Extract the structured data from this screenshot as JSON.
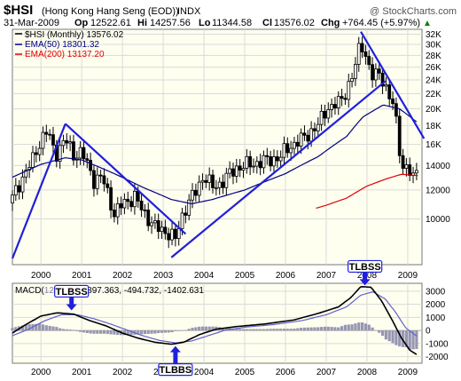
{
  "header": {
    "symbol": "$HSI",
    "name": "(Hong Kong Hang Seng (EOD))",
    "exchange": "INDX",
    "watermark": "@ StockCharts.com",
    "date": "31-Mar-2009",
    "op_label": "Op",
    "op_value": "12522.61",
    "hi_label": "Hi",
    "hi_value": "14257.56",
    "lo_label": "Lo",
    "lo_value": "11344.58",
    "cl_label": "Cl",
    "cl_value": "13576.02",
    "chg_label": "Chg",
    "chg_value": "+764.45 (+5.97%)",
    "chg_arrow": "▲"
  },
  "colors": {
    "panel_bg": "#fffff0",
    "grid": "#dadada",
    "price": "#000000",
    "ema50": "#00007f",
    "ema200": "#e00000",
    "trendline": "#1f1fdc",
    "histogram": "#9696b4",
    "macd_signal": "#6060cc",
    "arrow": "#1f1fdc"
  },
  "chart_data": [
    {
      "type": "candlestick",
      "title": "$HSI (Monthly) 13576.02",
      "legend": [
        {
          "label": "$HSI (Monthly) 13576.02",
          "color": "#000000"
        },
        {
          "label": "EMA(50) 18301.32",
          "color": "#00007f"
        },
        {
          "label": "EMA(200) 13137.20",
          "color": "#e00000"
        }
      ],
      "legend_position": "top-left",
      "scale": "log",
      "ylim": [
        7500,
        33000
      ],
      "yticks": [
        10000,
        12000,
        14000,
        16000,
        18000,
        20000,
        22000,
        24000,
        26000,
        28000,
        30000,
        32000
      ],
      "ytick_labels": [
        "10000",
        "12000",
        "14000",
        "16K",
        "18K",
        "20K",
        "22K",
        "24K",
        "26K",
        "28K",
        "30K",
        "32K"
      ],
      "xlim": [
        1999.3,
        2009.35
      ],
      "xticks": [
        "2000",
        "2001",
        "2002",
        "2003",
        "2004",
        "2005",
        "2006",
        "2007",
        "2008",
        "2009"
      ],
      "grid": true,
      "close_anchors": [
        [
          1999.3,
          11400
        ],
        [
          1999.55,
          13000
        ],
        [
          1999.8,
          14500
        ],
        [
          2000.0,
          16500
        ],
        [
          2000.15,
          17400
        ],
        [
          2000.35,
          15000
        ],
        [
          2000.6,
          16500
        ],
        [
          2000.8,
          15000
        ],
        [
          2001.0,
          15200
        ],
        [
          2001.3,
          12800
        ],
        [
          2001.5,
          13000
        ],
        [
          2001.8,
          10300
        ],
        [
          2002.0,
          11000
        ],
        [
          2002.3,
          11500
        ],
        [
          2002.5,
          10500
        ],
        [
          2002.8,
          9500
        ],
        [
          2003.1,
          9200
        ],
        [
          2003.3,
          8800
        ],
        [
          2003.5,
          10500
        ],
        [
          2003.8,
          11900
        ],
        [
          2004.0,
          13200
        ],
        [
          2004.2,
          12200
        ],
        [
          2004.4,
          12500
        ],
        [
          2004.8,
          13800
        ],
        [
          2005.0,
          14000
        ],
        [
          2005.5,
          14400
        ],
        [
          2005.9,
          14800
        ],
        [
          2006.0,
          15500
        ],
        [
          2006.4,
          16500
        ],
        [
          2006.8,
          18000
        ],
        [
          2007.0,
          20000
        ],
        [
          2007.3,
          20700
        ],
        [
          2007.5,
          22500
        ],
        [
          2007.7,
          25500
        ],
        [
          2007.85,
          31000
        ],
        [
          2008.0,
          27000
        ],
        [
          2008.15,
          24000
        ],
        [
          2008.3,
          25500
        ],
        [
          2008.5,
          22000
        ],
        [
          2008.6,
          21000
        ],
        [
          2008.75,
          18000
        ],
        [
          2008.85,
          13500
        ],
        [
          2008.95,
          13900
        ],
        [
          2009.05,
          13300
        ],
        [
          2009.15,
          12800
        ],
        [
          2009.25,
          13576
        ]
      ],
      "ema50_anchors": [
        [
          1999.3,
          13000
        ],
        [
          2000.0,
          14100
        ],
        [
          2000.6,
          14700
        ],
        [
          2001.0,
          14500
        ],
        [
          2001.8,
          13300
        ],
        [
          2002.5,
          12200
        ],
        [
          2003.2,
          11300
        ],
        [
          2003.7,
          11000
        ],
        [
          2004.2,
          11300
        ],
        [
          2005.0,
          12000
        ],
        [
          2006.0,
          13300
        ],
        [
          2006.8,
          14800
        ],
        [
          2007.5,
          16800
        ],
        [
          2007.9,
          19000
        ],
        [
          2008.4,
          20500
        ],
        [
          2008.8,
          20000
        ],
        [
          2009.25,
          18301
        ]
      ],
      "ema200_anchors": [
        [
          2006.75,
          10700
        ],
        [
          2007.0,
          10900
        ],
        [
          2007.5,
          11400
        ],
        [
          2008.0,
          12300
        ],
        [
          2008.5,
          12900
        ],
        [
          2008.85,
          13250
        ],
        [
          2009.25,
          13137
        ]
      ],
      "trendlines": [
        {
          "from": [
            1999.3,
            7800
          ],
          "to": [
            2000.6,
            18200
          ]
        },
        {
          "from": [
            2000.6,
            18200
          ],
          "to": [
            2003.55,
            9100
          ]
        },
        {
          "from": [
            2003.2,
            7850
          ],
          "to": [
            2008.45,
            23800
          ]
        },
        {
          "from": [
            2007.85,
            32500
          ],
          "to": [
            2009.4,
            16600
          ]
        }
      ]
    },
    {
      "type": "line",
      "title": "MACD(12,26,9) -1897.363, -494.732, -1402.631",
      "label_prefix": "MACD(",
      "label_covered": "12,26,9",
      "label_suffix": ") -1897.363, -494.732, -1402.631",
      "ylim": [
        -2500,
        3600
      ],
      "yticks": [
        -2000,
        -1000,
        0,
        1000,
        2000,
        3000
      ],
      "ytick_labels": [
        "-2000",
        "-1000",
        "0",
        "1000",
        "2000",
        "3000"
      ],
      "xlim": [
        1999.3,
        2009.35
      ],
      "xticks": [
        "2000",
        "2001",
        "2002",
        "2003",
        "2004",
        "2005",
        "2006",
        "2007",
        "2008",
        "2009"
      ],
      "grid": true,
      "macd_anchors": [
        [
          1999.3,
          -200
        ],
        [
          1999.6,
          400
        ],
        [
          2000.0,
          1100
        ],
        [
          2000.4,
          1350
        ],
        [
          2000.8,
          1250
        ],
        [
          2001.2,
          750
        ],
        [
          2001.6,
          350
        ],
        [
          2002.0,
          -200
        ],
        [
          2002.4,
          -600
        ],
        [
          2002.8,
          -900
        ],
        [
          2003.2,
          -1050
        ],
        [
          2003.5,
          -900
        ],
        [
          2003.9,
          -300
        ],
        [
          2004.3,
          100
        ],
        [
          2004.8,
          300
        ],
        [
          2005.5,
          500
        ],
        [
          2006.2,
          800
        ],
        [
          2006.8,
          1300
        ],
        [
          2007.3,
          1800
        ],
        [
          2007.6,
          2500
        ],
        [
          2007.85,
          3350
        ],
        [
          2008.1,
          3300
        ],
        [
          2008.35,
          2300
        ],
        [
          2008.6,
          900
        ],
        [
          2008.85,
          -600
        ],
        [
          2009.05,
          -1500
        ],
        [
          2009.25,
          -1897
        ]
      ],
      "signal_anchors": [
        [
          1999.3,
          -400
        ],
        [
          1999.7,
          100
        ],
        [
          2000.1,
          750
        ],
        [
          2000.5,
          1200
        ],
        [
          2000.9,
          1200
        ],
        [
          2001.3,
          900
        ],
        [
          2001.7,
          500
        ],
        [
          2002.1,
          50
        ],
        [
          2002.5,
          -400
        ],
        [
          2002.9,
          -750
        ],
        [
          2003.3,
          -950
        ],
        [
          2003.7,
          -800
        ],
        [
          2004.1,
          -400
        ],
        [
          2004.5,
          0
        ],
        [
          2005.0,
          250
        ],
        [
          2005.7,
          450
        ],
        [
          2006.4,
          750
        ],
        [
          2007.0,
          1200
        ],
        [
          2007.5,
          1800
        ],
        [
          2007.85,
          2700
        ],
        [
          2008.15,
          2950
        ],
        [
          2008.45,
          2400
        ],
        [
          2008.7,
          1400
        ],
        [
          2008.95,
          200
        ],
        [
          2009.25,
          -495
        ]
      ],
      "annotations": [
        {
          "text": "TLBSS",
          "x": 2000.75,
          "arrow": "down",
          "at": 1400
        },
        {
          "text": "TLBBS",
          "x": 2003.3,
          "arrow": "up",
          "at": -1050
        },
        {
          "text": "TLBSS",
          "x": 2007.95,
          "arrow": "down",
          "at": 3300
        }
      ]
    }
  ]
}
